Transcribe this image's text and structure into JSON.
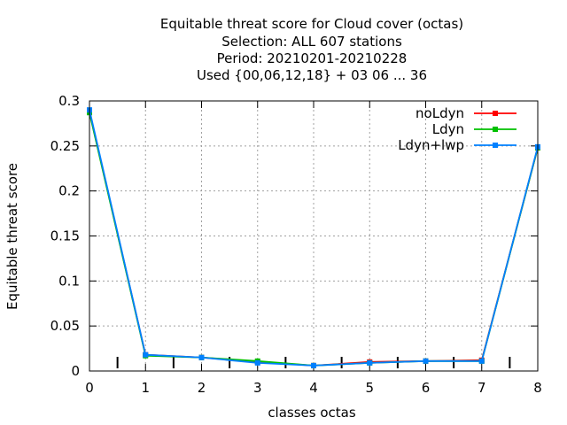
{
  "chart_data": {
    "type": "line",
    "title_lines": [
      "Equitable threat score  for Cloud cover (octas)",
      "Selection: ALL    607 stations",
      "Period: 20210201-20210228",
      "Used {00,06,12,18} + 03 06 ... 36"
    ],
    "xlabel": "classes octas",
    "ylabel": "Equitable threat score",
    "xlim": [
      0,
      8
    ],
    "ylim": [
      0,
      0.3
    ],
    "x_ticks": [
      "0",
      "1",
      "2",
      "3",
      "4",
      "5",
      "6",
      "7",
      "8"
    ],
    "y_ticks": [
      "0",
      "0.05",
      "0.1",
      "0.15",
      "0.2",
      "0.25",
      "0.3"
    ],
    "grid": true,
    "legend_position": "top-right",
    "x": [
      0,
      1,
      2,
      3,
      4,
      5,
      6,
      7,
      8
    ],
    "series": [
      {
        "name": "noLdyn",
        "color": "#ff0000",
        "values": [
          0.288,
          0.018,
          0.015,
          0.01,
          0.006,
          0.01,
          0.011,
          0.012,
          0.248
        ]
      },
      {
        "name": "Ldyn",
        "color": "#00c000",
        "values": [
          0.287,
          0.017,
          0.015,
          0.011,
          0.006,
          0.009,
          0.011,
          0.011,
          0.248
        ]
      },
      {
        "name": "Ldyn+lwp",
        "color": "#0080ff",
        "values": [
          0.29,
          0.018,
          0.015,
          0.009,
          0.006,
          0.009,
          0.011,
          0.011,
          0.249
        ]
      }
    ]
  }
}
